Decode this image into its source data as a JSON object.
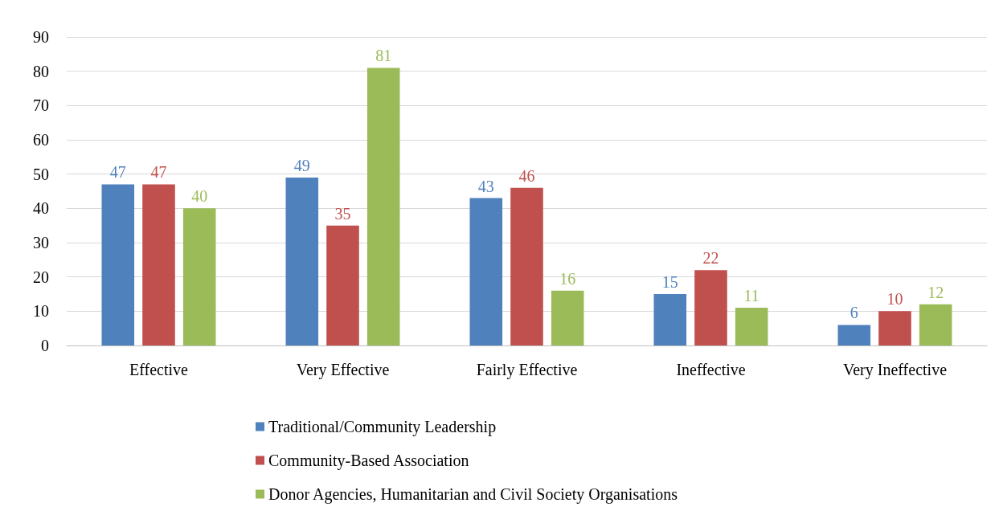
{
  "chart_data": {
    "type": "bar",
    "categories": [
      "Effective",
      "Very Effective",
      "Fairly Effective",
      "Ineffective",
      "Very Ineffective"
    ],
    "series": [
      {
        "name": "Traditional/Community Leadership",
        "color": "#4f81bd",
        "values": [
          47,
          49,
          43,
          15,
          6
        ]
      },
      {
        "name": "Community-Based Association",
        "color": "#c0504d",
        "values": [
          47,
          35,
          46,
          22,
          10
        ]
      },
      {
        "name": "Donor Agencies, Humanitarian and Civil Society Organisations",
        "color": "#9bbb59",
        "values": [
          40,
          81,
          16,
          11,
          12
        ]
      }
    ],
    "ylim": [
      0,
      90
    ],
    "yticks": [
      0,
      10,
      20,
      30,
      40,
      50,
      60,
      70,
      80,
      90
    ],
    "grid": "y",
    "legend": "bottom",
    "data_labels": true
  }
}
